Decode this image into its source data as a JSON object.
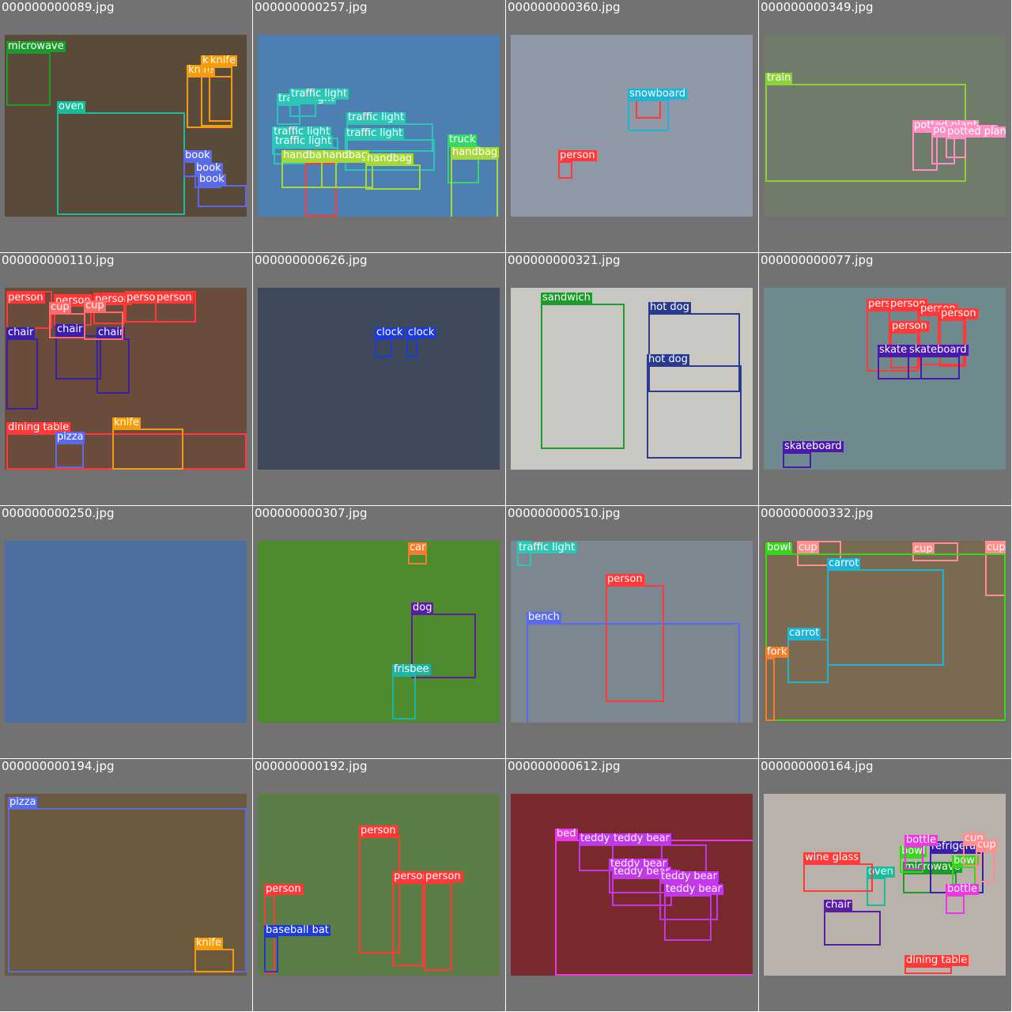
{
  "tiles": [
    {
      "filename": "000000000089.jpg",
      "photo": "#5a4a3a",
      "detections": [
        {
          "label": "microwave",
          "color": "#1f9a2c"
        },
        {
          "label": "oven",
          "color": "#1abc9c"
        },
        {
          "label": "knife",
          "color": "#f39c12"
        },
        {
          "label": "knife",
          "color": "#f39c12"
        },
        {
          "label": "knife",
          "color": "#f39c12"
        },
        {
          "label": "book",
          "color": "#5b6be8"
        },
        {
          "label": "book",
          "color": "#5b6be8"
        },
        {
          "label": "book",
          "color": "#5b6be8"
        }
      ]
    },
    {
      "filename": "000000000257.jpg",
      "photo": "#4d7fb3",
      "detections": [
        {
          "label": "traffic light",
          "color": "#2ec4b6"
        },
        {
          "label": "traffic light",
          "color": "#2ec4b6"
        },
        {
          "label": "traffic light",
          "color": "#2ec4b6"
        },
        {
          "label": "traffic light",
          "color": "#2ec4b6"
        },
        {
          "label": "traffic light",
          "color": "#2ec4b6"
        },
        {
          "label": "traffic light",
          "color": "#2ec4b6"
        },
        {
          "label": "truck",
          "color": "#36d66b"
        },
        {
          "label": "person",
          "color": "#ff3838"
        },
        {
          "label": "handbag",
          "color": "#a5d83a"
        },
        {
          "label": "handbag",
          "color": "#a5d83a"
        },
        {
          "label": "handbag",
          "color": "#a5d83a"
        },
        {
          "label": "handbag",
          "color": "#a5d83a"
        }
      ]
    },
    {
      "filename": "000000000360.jpg",
      "photo": "#8e98a6",
      "detections": [
        {
          "label": "person",
          "color": "#ff3838"
        },
        {
          "label": "snowboard",
          "color": "#21b3d4"
        },
        {
          "label": "person",
          "color": "#ff3838"
        }
      ]
    },
    {
      "filename": "000000000349.jpg",
      "photo": "#6f7c6a",
      "detections": [
        {
          "label": "train",
          "color": "#8fd13a"
        },
        {
          "label": "potted plant",
          "color": "#ff8fc4"
        },
        {
          "label": "potted plant",
          "color": "#ff8fc4"
        },
        {
          "label": "potted plant",
          "color": "#ff8fc4"
        }
      ]
    },
    {
      "filename": "000000000110.jpg",
      "photo": "#6a4c3d",
      "detections": [
        {
          "label": "person",
          "color": "#ff3838"
        },
        {
          "label": "person",
          "color": "#ff3838"
        },
        {
          "label": "person",
          "color": "#ff3838"
        },
        {
          "label": "person",
          "color": "#ff3838"
        },
        {
          "label": "person",
          "color": "#ff3838"
        },
        {
          "label": "chair",
          "color": "#3a1fa8"
        },
        {
          "label": "chair",
          "color": "#3a1fa8"
        },
        {
          "label": "chair",
          "color": "#3a1fa8"
        },
        {
          "label": "cup",
          "color": "#ff6b6b"
        },
        {
          "label": "cup",
          "color": "#ff6b6b"
        },
        {
          "label": "dining table",
          "color": "#ff3838"
        },
        {
          "label": "pizza",
          "color": "#5b6be8"
        },
        {
          "label": "knife",
          "color": "#f39c12"
        }
      ]
    },
    {
      "filename": "000000000626.jpg",
      "photo": "#3e4a5c",
      "detections": [
        {
          "label": "clock",
          "color": "#1f3bd6"
        },
        {
          "label": "clock",
          "color": "#1f3bd6"
        }
      ]
    },
    {
      "filename": "000000000321.jpg",
      "photo": "#c9c7c2",
      "detections": [
        {
          "label": "sandwich",
          "color": "#1f9a2c"
        },
        {
          "label": "hot dog",
          "color": "#2b3a8c"
        },
        {
          "label": "hot dog",
          "color": "#2b3a8c"
        }
      ]
    },
    {
      "filename": "000000000077.jpg",
      "photo": "#6f8a8e",
      "detections": [
        {
          "label": "person",
          "color": "#ff3838"
        },
        {
          "label": "person",
          "color": "#ff3838"
        },
        {
          "label": "person",
          "color": "#ff3838"
        },
        {
          "label": "person",
          "color": "#ff3838"
        },
        {
          "label": "person",
          "color": "#ff3838"
        },
        {
          "label": "skateboard",
          "color": "#4b1aa8"
        },
        {
          "label": "skateboard",
          "color": "#4b1aa8"
        },
        {
          "label": "skateboard",
          "color": "#4b1aa8"
        }
      ]
    },
    {
      "filename": "000000000250.jpg",
      "photo": "#4b6f9e",
      "detections": []
    },
    {
      "filename": "000000000307.jpg",
      "photo": "#4e8b2f",
      "detections": [
        {
          "label": "car",
          "color": "#f08030"
        },
        {
          "label": "dog",
          "color": "#5a1fa0"
        },
        {
          "label": "frisbee",
          "color": "#21b3a4"
        }
      ]
    },
    {
      "filename": "000000000510.jpg",
      "photo": "#7d8791",
      "detections": [
        {
          "label": "traffic light",
          "color": "#2ec4b6"
        },
        {
          "label": "person",
          "color": "#ff3838"
        },
        {
          "label": "bench",
          "color": "#5b6be8"
        }
      ]
    },
    {
      "filename": "000000000332.jpg",
      "photo": "#7a6a52",
      "detections": [
        {
          "label": "cup",
          "color": "#ff8f8f"
        },
        {
          "label": "cup",
          "color": "#ff8f8f"
        },
        {
          "label": "cup",
          "color": "#ff8f8f"
        },
        {
          "label": "bowl",
          "color": "#36d61c"
        },
        {
          "label": "carrot",
          "color": "#21b3d4"
        },
        {
          "label": "carrot",
          "color": "#21b3d4"
        },
        {
          "label": "fork",
          "color": "#f08030"
        }
      ]
    },
    {
      "filename": "000000000194.jpg",
      "photo": "#6b5a3e",
      "detections": [
        {
          "label": "pizza",
          "color": "#5b6be8"
        },
        {
          "label": "knife",
          "color": "#f39c12"
        }
      ]
    },
    {
      "filename": "000000000192.jpg",
      "photo": "#5c7d45",
      "detections": [
        {
          "label": "person",
          "color": "#ff3838"
        },
        {
          "label": "person",
          "color": "#ff3838"
        },
        {
          "label": "person",
          "color": "#ff3838"
        },
        {
          "label": "person",
          "color": "#ff3838"
        },
        {
          "label": "baseball bat",
          "color": "#1f3bd6"
        }
      ]
    },
    {
      "filename": "000000000612.jpg",
      "photo": "#7a2a2e",
      "detections": [
        {
          "label": "bed",
          "color": "#e83ae0"
        },
        {
          "label": "teddy bear",
          "color": "#c23ae8"
        },
        {
          "label": "teddy bear",
          "color": "#c23ae8"
        },
        {
          "label": "teddy bear",
          "color": "#c23ae8"
        },
        {
          "label": "teddy bear",
          "color": "#c23ae8"
        },
        {
          "label": "teddy bear",
          "color": "#c23ae8"
        },
        {
          "label": "teddy bear",
          "color": "#c23ae8"
        }
      ]
    },
    {
      "filename": "000000000164.jpg",
      "photo": "#b9b2aa",
      "detections": [
        {
          "label": "chair",
          "color": "#5a1fa0"
        },
        {
          "label": "dining table",
          "color": "#ff3838"
        },
        {
          "label": "oven",
          "color": "#1abc9c"
        },
        {
          "label": "microwave",
          "color": "#1f9a2c"
        },
        {
          "label": "refrigerator",
          "color": "#3a1fa8"
        },
        {
          "label": "bowl",
          "color": "#36d61c"
        },
        {
          "label": "bowl",
          "color": "#36d61c"
        },
        {
          "label": "bottle",
          "color": "#e83ae0"
        },
        {
          "label": "bottle",
          "color": "#e83ae0"
        },
        {
          "label": "cup",
          "color": "#ff8f8f"
        },
        {
          "label": "cup",
          "color": "#ff8f8f"
        },
        {
          "label": "wine glass",
          "color": "#ff3838"
        }
      ]
    }
  ]
}
